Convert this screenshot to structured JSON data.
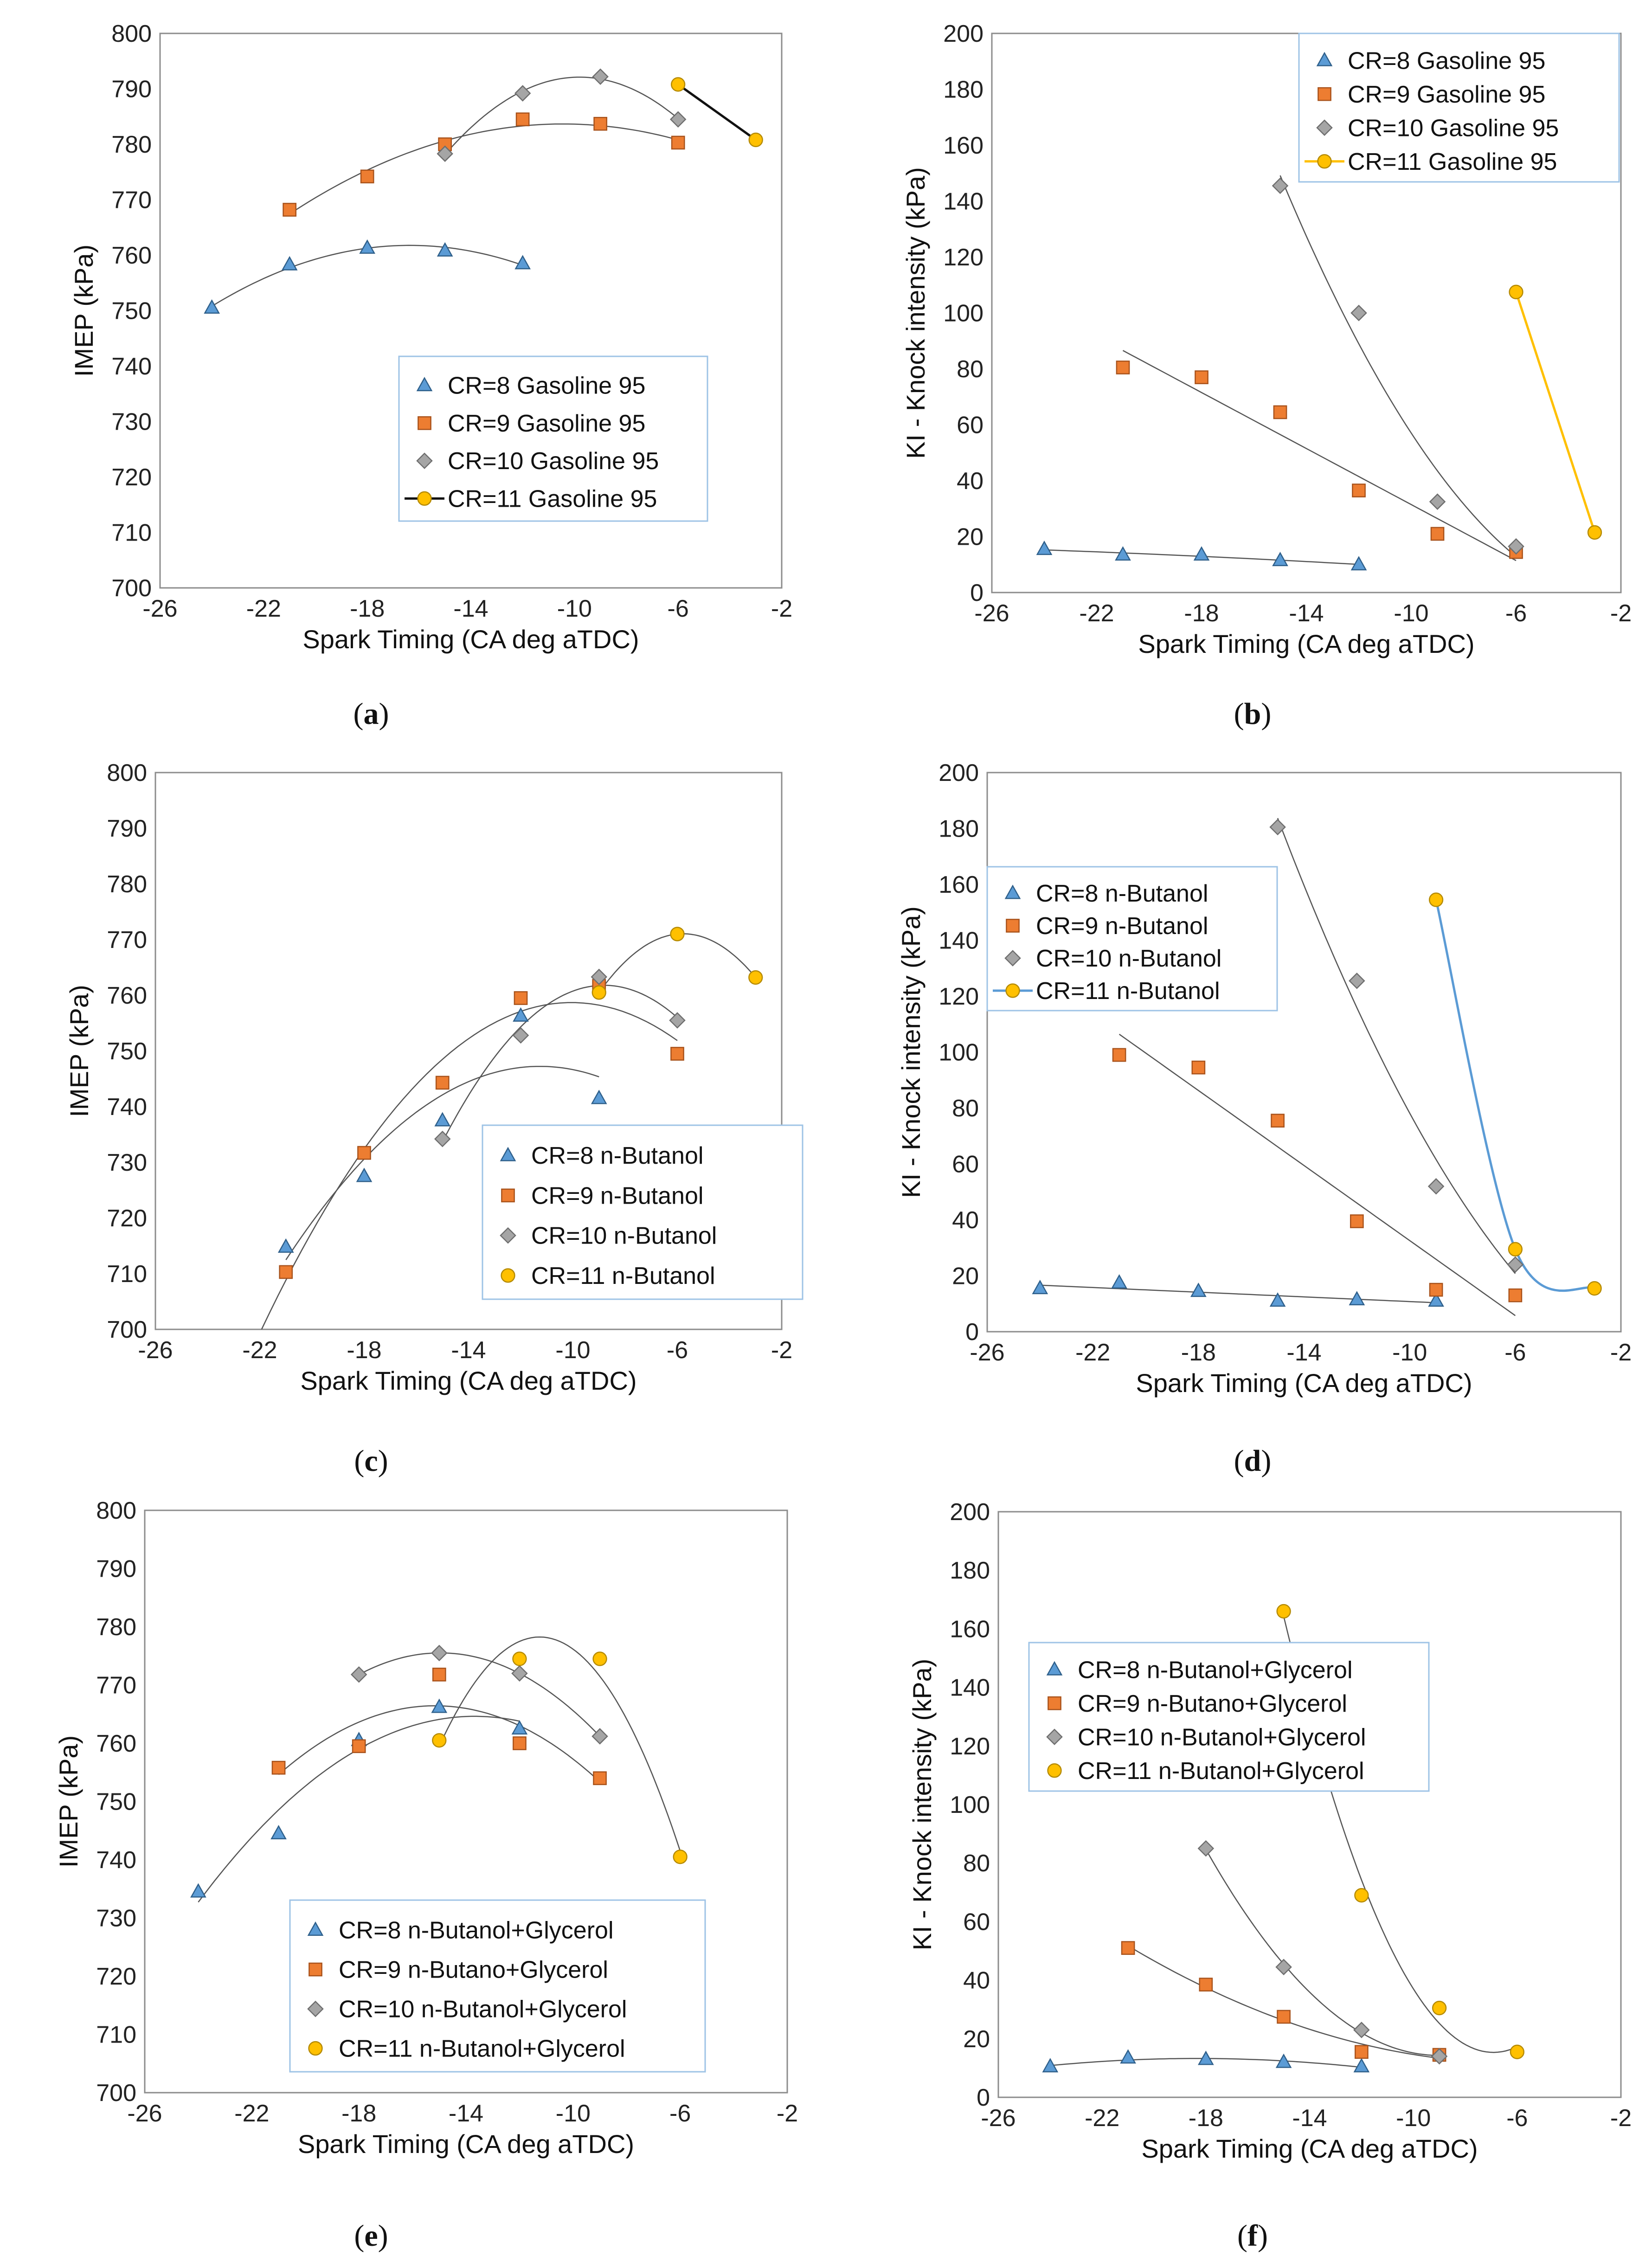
{
  "colors": {
    "cr8": "#5b9bd5",
    "cr8_edge": "#2e5f8a",
    "cr9": "#ed7d31",
    "cr9_edge": "#a8521b",
    "cr10": "#a5a5a5",
    "cr10_edge": "#6e6e6e",
    "cr11": "#ffc000",
    "cr11_edge": "#b58a00",
    "trend": "#555555",
    "kb_cr11_line": "#ffc000",
    "kd_cr11_line": "#5b9bd5",
    "ia_cr11_line": "#111111"
  },
  "chart_data": [
    {
      "id": "a",
      "label": "a",
      "type": "scatter",
      "xlabel": "Spark Timing (CA deg aTDC)",
      "ylabel": "IMEP (kPa)",
      "xlim": [
        -26,
        -2
      ],
      "ylim": [
        700,
        800
      ],
      "xticks": [
        "-26",
        "-22",
        "-18",
        "-14",
        "-10",
        "-6",
        "-2"
      ],
      "yticks": [
        "700",
        "710",
        "720",
        "730",
        "740",
        "750",
        "760",
        "770",
        "780",
        "790",
        "800"
      ],
      "legend_position": "lower-right",
      "series": [
        {
          "name": "CR=8  Gasoline 95",
          "marker": "triangle",
          "color_key": "cr8",
          "x": [
            -24,
            -21,
            -18,
            -15,
            -12
          ],
          "y": [
            750.5,
            758.3,
            761.3,
            760.8,
            758.5
          ],
          "trend": "poly"
        },
        {
          "name": "CR=9  Gasoline 95",
          "marker": "square",
          "color_key": "cr9",
          "x": [
            -21,
            -18,
            -15,
            -12,
            -9,
            -6
          ],
          "y": [
            768.2,
            774.2,
            780.0,
            784.5,
            783.7,
            780.3
          ],
          "trend": "poly"
        },
        {
          "name": "CR=10  Gasoline 95",
          "marker": "diamond",
          "color_key": "cr10",
          "x": [
            -15,
            -12,
            -9,
            -6
          ],
          "y": [
            778.3,
            789.2,
            792.2,
            784.5
          ],
          "trend": "poly"
        },
        {
          "name": "CR=11  Gasoline 95",
          "marker": "circle",
          "color_key": "cr11",
          "x": [
            -6,
            -3
          ],
          "y": [
            790.8,
            780.8
          ],
          "trend": "line",
          "line_color_key": "ia_cr11_line",
          "legend_line": true
        }
      ]
    },
    {
      "id": "b",
      "label": "b",
      "type": "scatter",
      "xlabel": "Spark Timing (CA deg aTDC)",
      "ylabel": "KI - Knock intensity (kPa)",
      "xlim": [
        -26,
        -2
      ],
      "ylim": [
        0,
        200
      ],
      "xticks": [
        "-26",
        "-22",
        "-18",
        "-14",
        "-10",
        "-6",
        "-2"
      ],
      "yticks": [
        "0",
        "20",
        "40",
        "60",
        "80",
        "100",
        "120",
        "140",
        "160",
        "180",
        "200"
      ],
      "legend_position": "top-right",
      "series": [
        {
          "name": "CR=8  Gasoline 95",
          "marker": "triangle",
          "color_key": "cr8",
          "x": [
            -24,
            -21,
            -18,
            -15,
            -12
          ],
          "y": [
            15.5,
            13.5,
            13.5,
            11.5,
            10.0
          ],
          "trend": "poly"
        },
        {
          "name": "CR=9  Gasoline 95",
          "marker": "square",
          "color_key": "cr9",
          "x": [
            -21,
            -18,
            -15,
            -12,
            -9,
            -6
          ],
          "y": [
            80.5,
            77.0,
            64.5,
            36.5,
            21.0,
            14.5
          ],
          "trend": "line"
        },
        {
          "name": "CR=10  Gasoline 95",
          "marker": "diamond",
          "color_key": "cr10",
          "x": [
            -15,
            -12,
            -9,
            -6
          ],
          "y": [
            145.5,
            100.0,
            32.5,
            16.5
          ],
          "trend": "poly"
        },
        {
          "name": "CR=11  Gasoline 95",
          "marker": "circle",
          "color_key": "cr11",
          "x": [
            -6,
            -3
          ],
          "y": [
            107.5,
            21.5
          ],
          "trend": "line",
          "line_color_key": "kb_cr11_line",
          "legend_line": true
        }
      ]
    },
    {
      "id": "c",
      "label": "c",
      "type": "scatter",
      "xlabel": "Spark Timing (CA deg aTDC)",
      "ylabel": "IMEP (kPa)",
      "xlim": [
        -26,
        -2
      ],
      "ylim": [
        700,
        800
      ],
      "xticks": [
        "-26",
        "-22",
        "-18",
        "-14",
        "-10",
        "-6",
        "-2"
      ],
      "yticks": [
        "700",
        "710",
        "720",
        "730",
        "740",
        "750",
        "760",
        "770",
        "780",
        "790",
        "800"
      ],
      "legend_position": "lower-right",
      "series": [
        {
          "name": "CR=8  n-Butanol",
          "marker": "triangle",
          "color_key": "cr8",
          "x": [
            -21,
            -18,
            -15,
            -12,
            -9
          ],
          "y": [
            714.8,
            727.5,
            737.5,
            756.3,
            741.5
          ],
          "trend": "poly"
        },
        {
          "name": "CR=9  n-Butanol",
          "marker": "square",
          "color_key": "cr9",
          "x": [
            -21,
            -18,
            -15,
            -12,
            -9,
            -6
          ],
          "y": [
            710.3,
            731.7,
            744.3,
            759.5,
            761.7,
            749.5
          ],
          "trend": "poly"
        },
        {
          "name": "CR=10  n-Butanol",
          "marker": "diamond",
          "color_key": "cr10",
          "x": [
            -15,
            -12,
            -9,
            -6
          ],
          "y": [
            734.2,
            752.8,
            763.3,
            755.5
          ],
          "trend": "poly"
        },
        {
          "name": "CR=11 n-Butanol",
          "marker": "circle",
          "color_key": "cr11",
          "x": [
            -9,
            -6,
            -3
          ],
          "y": [
            760.5,
            771.0,
            763.2
          ],
          "trend": "poly"
        }
      ]
    },
    {
      "id": "d",
      "label": "d",
      "type": "scatter",
      "xlabel": "Spark Timing (CA deg aTDC)",
      "ylabel": "KI - Knock intensity (kPa)",
      "xlim": [
        -26,
        -2
      ],
      "ylim": [
        0,
        200
      ],
      "xticks": [
        "-26",
        "-22",
        "-18",
        "-14",
        "-10",
        "-6",
        "-2"
      ],
      "yticks": [
        "0",
        "20",
        "40",
        "60",
        "80",
        "100",
        "120",
        "140",
        "160",
        "180",
        "200"
      ],
      "legend_position": "top-left",
      "series": [
        {
          "name": "CR=8  n-Butanol",
          "marker": "triangle",
          "color_key": "cr8",
          "x": [
            -24,
            -21,
            -18,
            -15,
            -12,
            -9
          ],
          "y": [
            15.5,
            17.5,
            14.5,
            11.0,
            11.5,
            11.0
          ],
          "trend": "line"
        },
        {
          "name": "CR=9  n-Butanol",
          "marker": "square",
          "color_key": "cr9",
          "x": [
            -21,
            -18,
            -15,
            -12,
            -9,
            -6
          ],
          "y": [
            99.0,
            94.5,
            75.5,
            39.5,
            15.0,
            13.0
          ],
          "trend": "line"
        },
        {
          "name": "CR=10  n-Butanol",
          "marker": "diamond",
          "color_key": "cr10",
          "x": [
            -15,
            -12,
            -9,
            -6
          ],
          "y": [
            180.5,
            125.5,
            52.0,
            24.0
          ],
          "trend": "poly"
        },
        {
          "name": "CR=11 n-Butanol",
          "marker": "circle",
          "color_key": "cr11",
          "x": [
            -9,
            -6,
            -3
          ],
          "y": [
            154.5,
            29.5,
            15.5
          ],
          "trend": "smooth",
          "line_color_key": "kd_cr11_line",
          "legend_line": true
        }
      ]
    },
    {
      "id": "e",
      "label": "e",
      "type": "scatter",
      "xlabel": "Spark Timing (CA deg aTDC)",
      "ylabel": "IMEP (kPa)",
      "xlim": [
        -26,
        -2
      ],
      "ylim": [
        700,
        800
      ],
      "xticks": [
        "-26",
        "-22",
        "-18",
        "-14",
        "-10",
        "-6",
        "-2"
      ],
      "yticks": [
        "700",
        "710",
        "720",
        "730",
        "740",
        "750",
        "760",
        "770",
        "780",
        "790",
        "800"
      ],
      "legend_position": "lower-center",
      "series": [
        {
          "name": "CR=8 n-Butanol+Glycerol",
          "marker": "triangle",
          "color_key": "cr8",
          "x": [
            -24,
            -21,
            -18,
            -15,
            -12
          ],
          "y": [
            734.5,
            744.5,
            760.5,
            766.2,
            762.5
          ],
          "trend": "poly"
        },
        {
          "name": "CR=9  n-Butano+Glycerol",
          "marker": "square",
          "color_key": "cr9",
          "x": [
            -21,
            -18,
            -15,
            -12,
            -9
          ],
          "y": [
            755.8,
            759.5,
            771.8,
            760.0,
            754.0
          ],
          "trend": "poly"
        },
        {
          "name": "CR=10 n-Butanol+Glycerol",
          "marker": "diamond",
          "color_key": "cr10",
          "x": [
            -18,
            -15,
            -12,
            -9
          ],
          "y": [
            771.8,
            775.5,
            772.0,
            761.2
          ],
          "trend": "poly"
        },
        {
          "name": "CR=11 n-Butanol+Glycerol",
          "marker": "circle",
          "color_key": "cr11",
          "x": [
            -15,
            -12,
            -9,
            -6
          ],
          "y": [
            760.5,
            774.5,
            774.5,
            740.5
          ],
          "trend": "poly"
        }
      ]
    },
    {
      "id": "f",
      "label": "f",
      "type": "scatter",
      "xlabel": "Spark Timing (CA deg aTDC)",
      "ylabel": "KI - Knock intensity (kPa)",
      "xlim": [
        -26,
        -2
      ],
      "ylim": [
        0,
        200
      ],
      "xticks": [
        "-26",
        "-22",
        "-18",
        "-14",
        "-10",
        "-6",
        "-2"
      ],
      "yticks": [
        "0",
        "20",
        "40",
        "60",
        "80",
        "100",
        "120",
        "140",
        "160",
        "180",
        "200"
      ],
      "legend_position": "top-left",
      "series": [
        {
          "name": "CR=8  n-Butanol+Glycerol",
          "marker": "triangle",
          "color_key": "cr8",
          "x": [
            -24,
            -21,
            -18,
            -15,
            -12
          ],
          "y": [
            10.5,
            13.5,
            13.0,
            12.0,
            10.5
          ],
          "trend": "poly"
        },
        {
          "name": "CR=9  n-Butano+Glycerol",
          "marker": "square",
          "color_key": "cr9",
          "x": [
            -21,
            -18,
            -15,
            -12,
            -9
          ],
          "y": [
            51.0,
            38.5,
            27.5,
            15.5,
            14.5
          ],
          "trend": "poly"
        },
        {
          "name": "CR=10 n-Butanol+Glycerol",
          "marker": "diamond",
          "color_key": "cr10",
          "x": [
            -18,
            -15,
            -12,
            -9
          ],
          "y": [
            85.0,
            44.5,
            23.0,
            14.0
          ],
          "trend": "poly"
        },
        {
          "name": "CR=11 n-Butanol+Glycerol",
          "marker": "circle",
          "color_key": "cr11",
          "x": [
            -15,
            -12,
            -9,
            -6
          ],
          "y": [
            166.0,
            69.0,
            30.5,
            15.5
          ],
          "trend": "poly"
        }
      ]
    }
  ]
}
